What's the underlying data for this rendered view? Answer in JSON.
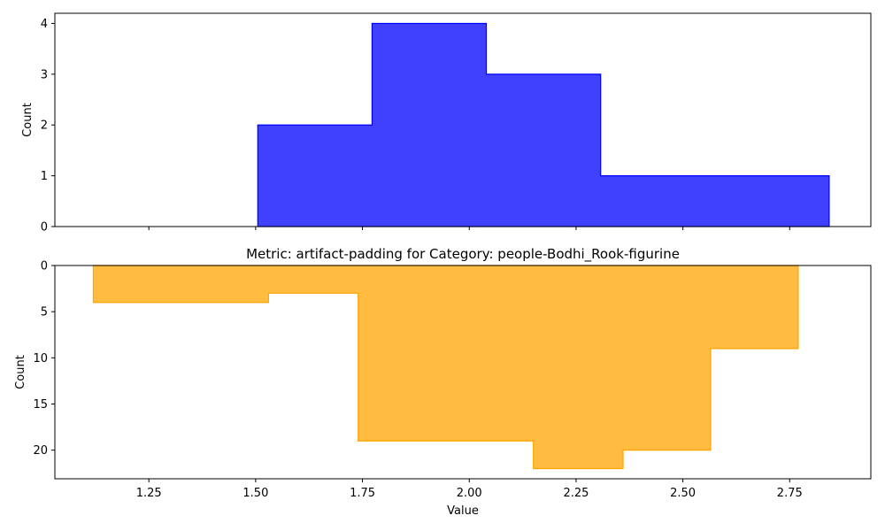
{
  "chart_data": [
    {
      "type": "histogram",
      "histtype": "stepfilled",
      "color": "#0000ff",
      "title": "",
      "xlabel": "",
      "ylabel": "Count",
      "xlim": [
        1.03,
        2.94
      ],
      "ylim": [
        0,
        4.2
      ],
      "inverted_y": false,
      "bins": [
        1.505,
        1.7725,
        2.04,
        2.3075,
        2.575,
        2.8425
      ],
      "counts": [
        2,
        4,
        3,
        1,
        1
      ],
      "yticks": [
        0,
        1,
        2,
        3,
        4
      ],
      "ytick_labels": [
        "0",
        "1",
        "2",
        "3",
        "4"
      ],
      "xtick_labels": [],
      "x_ticks_positions": [
        1.25,
        1.5,
        1.75,
        2.0,
        2.25,
        2.5,
        2.75
      ]
    },
    {
      "type": "histogram",
      "histtype": "stepfilled",
      "color": "#ffa500",
      "title": "Metric: artifact-padding for Category: people-Bodhi_Rook-figurine",
      "xlabel": "Value",
      "ylabel": "Count",
      "xlim": [
        1.03,
        2.94
      ],
      "ylim": [
        0,
        23.1
      ],
      "inverted_y": true,
      "bins": [
        1.12,
        1.53,
        1.74,
        2.15,
        2.36,
        2.565,
        2.77
      ],
      "counts": [
        4,
        3,
        19,
        22,
        20,
        9
      ],
      "yticks": [
        0,
        5,
        10,
        15,
        20
      ],
      "ytick_labels": [
        "0",
        "5",
        "10",
        "15",
        "20"
      ],
      "x_ticks_positions": [
        1.25,
        1.5,
        1.75,
        2.0,
        2.25,
        2.5,
        2.75
      ],
      "xtick_labels": [
        "1.25",
        "1.50",
        "1.75",
        "2.00",
        "2.25",
        "2.50",
        "2.75"
      ]
    }
  ]
}
